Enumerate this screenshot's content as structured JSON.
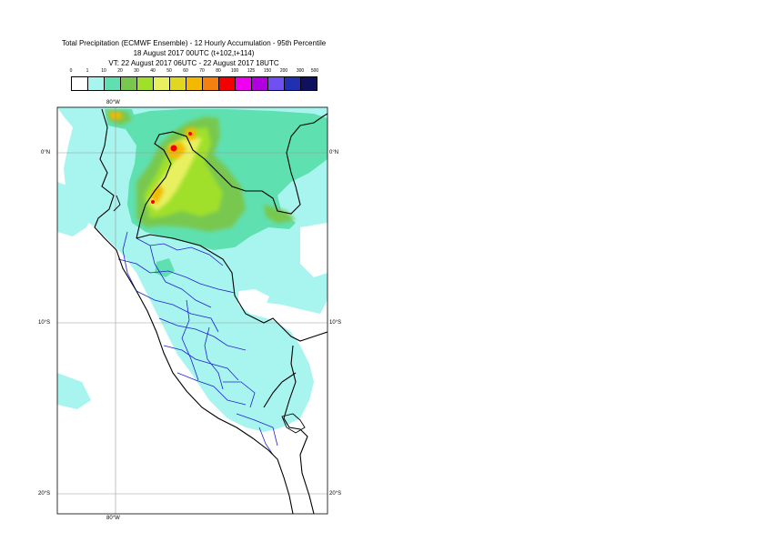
{
  "title": {
    "line1": "Total Precipitation (ECMWF Ensemble) - 12 Hourly Accumulation - 95th Percentile",
    "line2": "18 August 2017 00UTC (t+102,t+114)",
    "line3": "VT: 22 August 2017 06UTC - 22 August 2017 18UTC"
  },
  "legend": {
    "ticks": [
      "0",
      "1",
      "10",
      "20",
      "30",
      "40",
      "50",
      "60",
      "70",
      "80",
      "100",
      "125",
      "150",
      "200",
      "300",
      "500"
    ],
    "colors": [
      "#ffffff",
      "#a8f5f0",
      "#5fe0b0",
      "#78c850",
      "#a0e02a",
      "#e8f060",
      "#e0d820",
      "#f4b800",
      "#f48010",
      "#f40000",
      "#f000f0",
      "#b000e0",
      "#7050f0",
      "#2030b0",
      "#101060"
    ]
  },
  "map": {
    "labels": {
      "lon_top": "80°W",
      "lon_bottom": "80°W",
      "lat_0_left": "0°N",
      "lat_0_right": "0°N",
      "lat_10_left": "10°S",
      "lat_10_right": "10°S",
      "lat_20_left": "20°S",
      "lat_20_right": "20°S"
    }
  }
}
